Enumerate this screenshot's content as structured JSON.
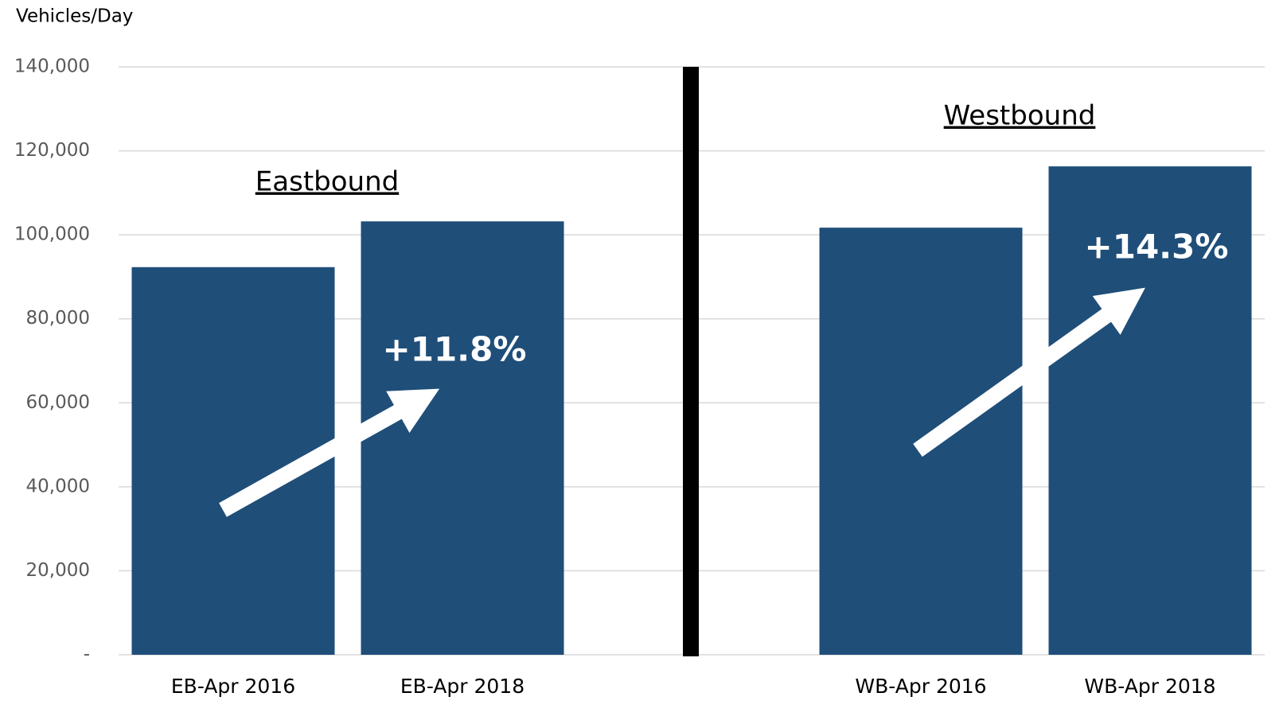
{
  "chart_data": {
    "type": "bar",
    "y_label": "Vehicles/Day",
    "categories": [
      "EB-Apr 2016",
      "EB-Apr 2018",
      null,
      "WB-Apr 2016",
      "WB-Apr 2018"
    ],
    "values": [
      92300,
      103200,
      null,
      101700,
      116300
    ],
    "color": "#1f4e79",
    "ylim": [
      0,
      140000
    ],
    "yticks": [
      {
        "value": 0,
        "label": "-"
      },
      {
        "value": 20000,
        "label": "20,000"
      },
      {
        "value": 40000,
        "label": "40,000"
      },
      {
        "value": 60000,
        "label": "60,000"
      },
      {
        "value": 80000,
        "label": "80,000"
      },
      {
        "value": 100000,
        "label": "100,000"
      },
      {
        "value": 120000,
        "label": "120,000"
      },
      {
        "value": 140000,
        "label": "140,000"
      }
    ],
    "grid": true,
    "annotations": [
      "Eastbound",
      "Westbound",
      "+11.8%",
      "+14.3%"
    ]
  }
}
